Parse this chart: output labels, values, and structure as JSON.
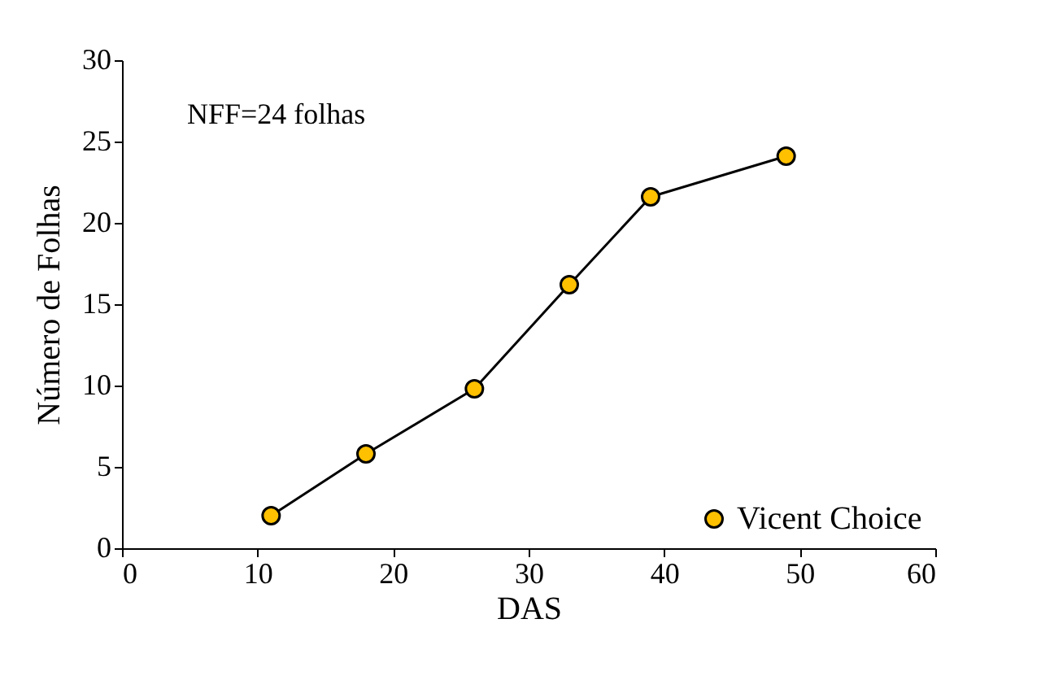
{
  "chart_data": {
    "type": "line",
    "xlabel": "DAS",
    "ylabel": "Número de Folhas",
    "x": [
      11,
      18,
      26,
      33,
      39,
      49
    ],
    "series": [
      {
        "name": "Vicent Choice",
        "color": "#ffc000",
        "values": [
          2.0,
          5.8,
          9.8,
          16.2,
          21.6,
          24.1
        ]
      }
    ],
    "xlim": [
      0,
      60
    ],
    "xticks": [
      0,
      10,
      20,
      30,
      40,
      50,
      60
    ],
    "ylim": [
      0,
      30
    ],
    "yticks": [
      0,
      5,
      10,
      15,
      20,
      25,
      30
    ],
    "annotations": [
      "NFF=24 folhas"
    ],
    "marker": "circle",
    "line_style": "solid",
    "grid": false,
    "legend": "bottom right"
  }
}
